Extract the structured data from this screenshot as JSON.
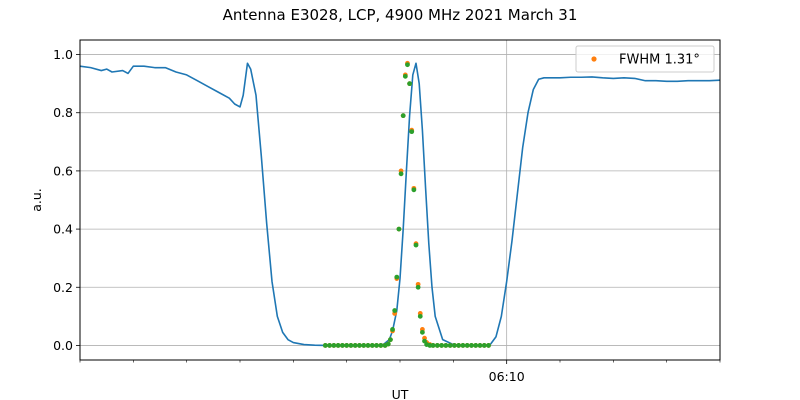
{
  "chart_data": {
    "type": "line",
    "title": "Antenna E3028, LCP, 4900 MHz 2021 March 31",
    "xlabel": "UT",
    "ylabel": "a.u.",
    "xlim": [
      0,
      60
    ],
    "ylim": [
      -0.05,
      1.05
    ],
    "yticks": [
      "0.0",
      "0.2",
      "0.4",
      "0.6",
      "0.8",
      "1.0"
    ],
    "xticks": [
      {
        "x": 40,
        "label": "06:10"
      }
    ],
    "x_minor_ticks": [
      0,
      5,
      10,
      15,
      20,
      25,
      30,
      35,
      45,
      50,
      55,
      60
    ],
    "grid": true,
    "legend": {
      "placement": "top-right",
      "entries": [
        "FWHM 1.31$^\\circ$"
      ],
      "display": "FWHM 1.31°"
    },
    "colors": {
      "line": "#1f77b4",
      "orange": "#ff7f0e",
      "green": "#2ca02c"
    },
    "series": [
      {
        "kind": "line",
        "x": [
          0,
          1,
          2,
          2.5,
          3,
          4,
          4.5,
          5,
          6,
          7,
          8,
          9,
          10,
          11,
          12,
          13,
          14,
          14.5,
          15,
          15.3,
          15.7,
          16,
          16.5,
          17,
          17.5,
          18,
          18.5,
          19,
          19.5,
          20,
          21,
          22,
          23,
          24,
          25,
          26,
          27,
          28,
          28.5,
          29,
          29.3,
          29.7,
          30,
          30.3,
          30.6,
          30.9,
          31.2,
          31.5,
          31.8,
          32.1,
          32.4,
          32.7,
          33,
          33.3,
          34,
          35,
          36,
          37,
          38,
          38.5,
          39,
          39.5,
          40,
          40.5,
          41,
          41.5,
          42,
          42.5,
          43,
          43.5,
          44,
          44.5,
          45,
          46,
          47,
          48,
          49,
          50,
          51,
          52,
          53,
          54,
          55,
          56,
          57,
          58,
          59,
          60
        ],
        "y": [
          0.96,
          0.955,
          0.945,
          0.95,
          0.94,
          0.945,
          0.935,
          0.96,
          0.96,
          0.955,
          0.955,
          0.94,
          0.93,
          0.91,
          0.89,
          0.87,
          0.85,
          0.83,
          0.82,
          0.86,
          0.97,
          0.95,
          0.86,
          0.65,
          0.42,
          0.22,
          0.1,
          0.045,
          0.02,
          0.01,
          0.003,
          0.001,
          0.0,
          0.0,
          0.0,
          0.0,
          0.0,
          0.0,
          0.005,
          0.02,
          0.05,
          0.12,
          0.23,
          0.4,
          0.6,
          0.79,
          0.93,
          0.97,
          0.9,
          0.74,
          0.54,
          0.35,
          0.2,
          0.1,
          0.02,
          0.003,
          0.0,
          0.0,
          0.0,
          0.005,
          0.03,
          0.1,
          0.22,
          0.36,
          0.52,
          0.68,
          0.8,
          0.88,
          0.915,
          0.92,
          0.92,
          0.92,
          0.92,
          0.922,
          0.922,
          0.923,
          0.92,
          0.918,
          0.92,
          0.918,
          0.91,
          0.91,
          0.908,
          0.908,
          0.91,
          0.91,
          0.91,
          0.912
        ]
      },
      {
        "kind": "points",
        "x": [
          23,
          23.4,
          23.8,
          24.2,
          24.6,
          25,
          25.4,
          25.8,
          26.2,
          26.6,
          27,
          27.4,
          27.8,
          28.2,
          28.6,
          28.9,
          29.1,
          29.3,
          29.5,
          29.7,
          29.9,
          30.1,
          30.3,
          30.5,
          30.7,
          30.9,
          31.1,
          31.3,
          31.5,
          31.7,
          31.9,
          32.1,
          32.3,
          32.5,
          32.8,
          33.1,
          33.5,
          33.9,
          34.3,
          34.7,
          35.1,
          35.5,
          35.9,
          36.3,
          36.7,
          37.1,
          37.5,
          37.9,
          38.3
        ],
        "y": [
          0.0,
          0.0,
          0.0,
          0.0,
          0.0,
          0.0,
          0.0,
          0.0,
          0.0,
          0.0,
          0.0,
          0.0,
          0.0,
          0.0,
          0.0,
          0.005,
          0.02,
          0.05,
          0.11,
          0.23,
          0.4,
          0.6,
          0.79,
          0.93,
          0.97,
          0.9,
          0.74,
          0.54,
          0.35,
          0.21,
          0.11,
          0.055,
          0.025,
          0.01,
          0.003,
          0.0,
          0.0,
          0.0,
          0.0,
          0.0,
          0.0,
          0.0,
          0.0,
          0.0,
          0.0,
          0.0,
          0.0,
          0.0,
          0.0
        ]
      },
      {
        "kind": "points",
        "x": [
          23,
          23.4,
          23.8,
          24.2,
          24.6,
          25,
          25.4,
          25.8,
          26.2,
          26.6,
          27,
          27.4,
          27.8,
          28.2,
          28.6,
          28.9,
          29.1,
          29.3,
          29.5,
          29.7,
          29.9,
          30.1,
          30.3,
          30.5,
          30.7,
          30.9,
          31.1,
          31.3,
          31.5,
          31.7,
          31.9,
          32.1,
          32.3,
          32.5,
          32.8,
          33.1,
          33.5,
          33.9,
          34.3,
          34.7,
          35.1,
          35.5,
          35.9,
          36.3,
          36.7,
          37.1,
          37.5,
          37.9,
          38.3
        ],
        "y": [
          0.0,
          0.0,
          0.0,
          0.0,
          0.0,
          0.0,
          0.0,
          0.0,
          0.0,
          0.0,
          0.0,
          0.0,
          0.0,
          0.0,
          0.0,
          0.005,
          0.02,
          0.055,
          0.12,
          0.235,
          0.4,
          0.59,
          0.79,
          0.925,
          0.965,
          0.9,
          0.735,
          0.535,
          0.345,
          0.2,
          0.1,
          0.045,
          0.015,
          0.003,
          0.0,
          0.0,
          0.0,
          0.0,
          0.0,
          0.0,
          0.0,
          0.0,
          0.0,
          0.0,
          0.0,
          0.0,
          0.0,
          0.0,
          0.0
        ]
      }
    ]
  }
}
